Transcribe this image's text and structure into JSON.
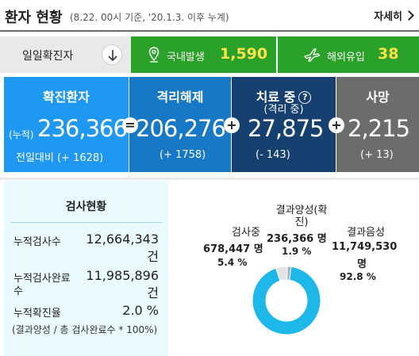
{
  "header": {
    "title": "환자 현황",
    "subtitle": "(8.22. 00시 기준, '20.1.3. 이후 누계)",
    "more_label": "자세히"
  },
  "daily": {
    "label": "일일확진자",
    "domestic_label": "국내발생",
    "domestic_value": "1,590",
    "overseas_label": "해외유입",
    "overseas_value": "38"
  },
  "stats": {
    "confirmed": {
      "title": "확진환자",
      "prefix": "(누적)",
      "value": "236,366",
      "change": "전일대비 (+ 1628)"
    },
    "released": {
      "title": "격리해제",
      "value": "206,276",
      "change": "(+ 1758)"
    },
    "treatment": {
      "title": "치료 중",
      "subtitle": "(격리 중)",
      "value": "27,875",
      "change": "(- 143)"
    },
    "deaths": {
      "title": "사망",
      "value": "2,215",
      "change": "(+ 13)"
    },
    "op_equals": "=",
    "op_plus": "+"
  },
  "testing": {
    "title": "검사현황",
    "rows": [
      {
        "label": "누적검사수",
        "value": "12,664,343",
        "unit": "건"
      },
      {
        "label": "누적검사완료",
        "label2": "수",
        "value": "11,985,896",
        "unit": "건"
      },
      {
        "label": "누적확진율",
        "value": "2.0 %"
      }
    ],
    "note": "(결과양성 / 총 검사완료수 * 100%)"
  },
  "donut": {
    "testing": {
      "label": "검사중",
      "value": "678,447",
      "unit": "명",
      "pct": "5.4 %"
    },
    "positive": {
      "label": "결과양성(확",
      "label2": "진)",
      "value": "236,366",
      "unit": "명",
      "pct": "1.9 %"
    },
    "negative": {
      "label": "결과음성",
      "value": "11,749,530",
      "unit": "명",
      "pct": "92.8 %"
    },
    "colors": {
      "negative": "#1db8e8",
      "testing": "#e4e4e4",
      "positive": "#9fb0b8"
    },
    "fractions": {
      "negative": 0.928,
      "testing": 0.054,
      "positive": 0.019
    }
  }
}
